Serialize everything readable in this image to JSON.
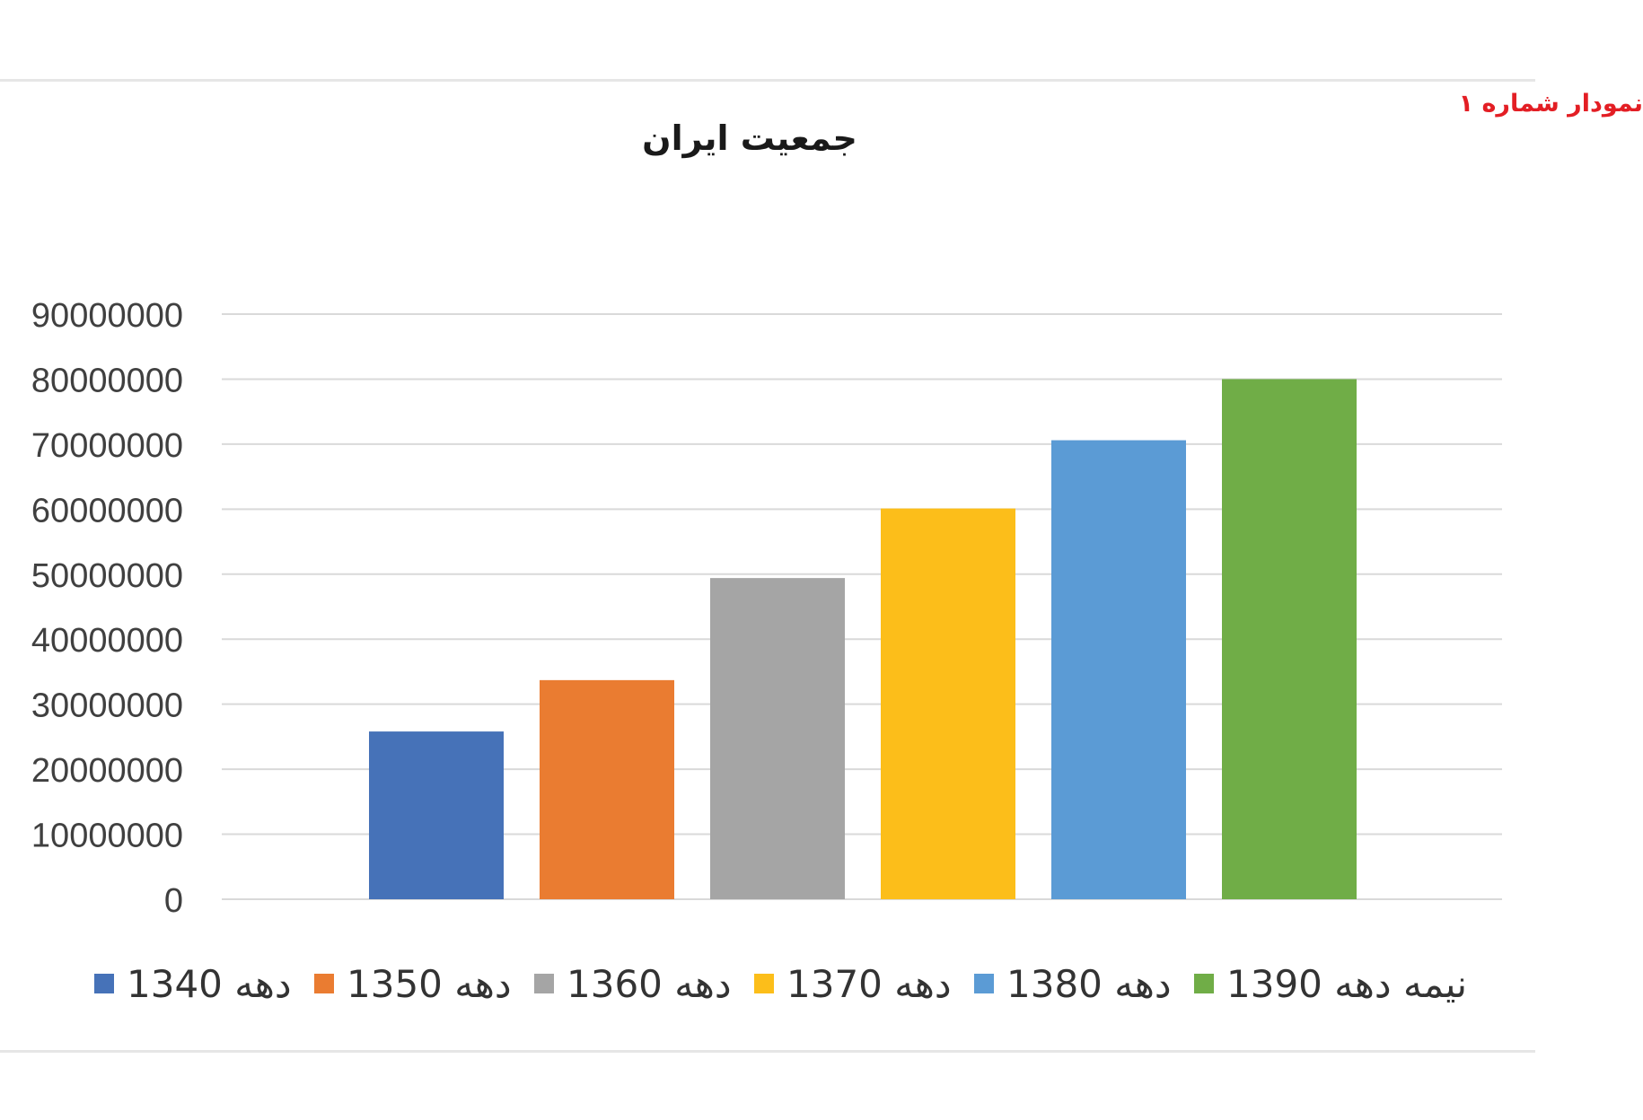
{
  "figure_label": "نمودار شماره ۱",
  "chart_data": {
    "type": "bar",
    "title": "جمعیت ایران",
    "categories": [
      "دهه 1340",
      "دهه 1350",
      "دهه 1360",
      "دهه 1370",
      "دهه 1380",
      "نیمه دهه 1390"
    ],
    "values": [
      25800000,
      33700000,
      49400000,
      60100000,
      70600000,
      80000000
    ],
    "colors": [
      "#4672b8",
      "#ea7c31",
      "#a5a5a5",
      "#fcbe1a",
      "#5b9bd5",
      "#70ad47"
    ],
    "yticks": [
      "0",
      "10000000",
      "20000000",
      "30000000",
      "40000000",
      "50000000",
      "60000000",
      "70000000",
      "80000000",
      "90000000"
    ],
    "ylim": [
      0,
      90000000
    ],
    "xlabel": "",
    "ylabel": "",
    "grid": true,
    "legend_position": "bottom"
  }
}
